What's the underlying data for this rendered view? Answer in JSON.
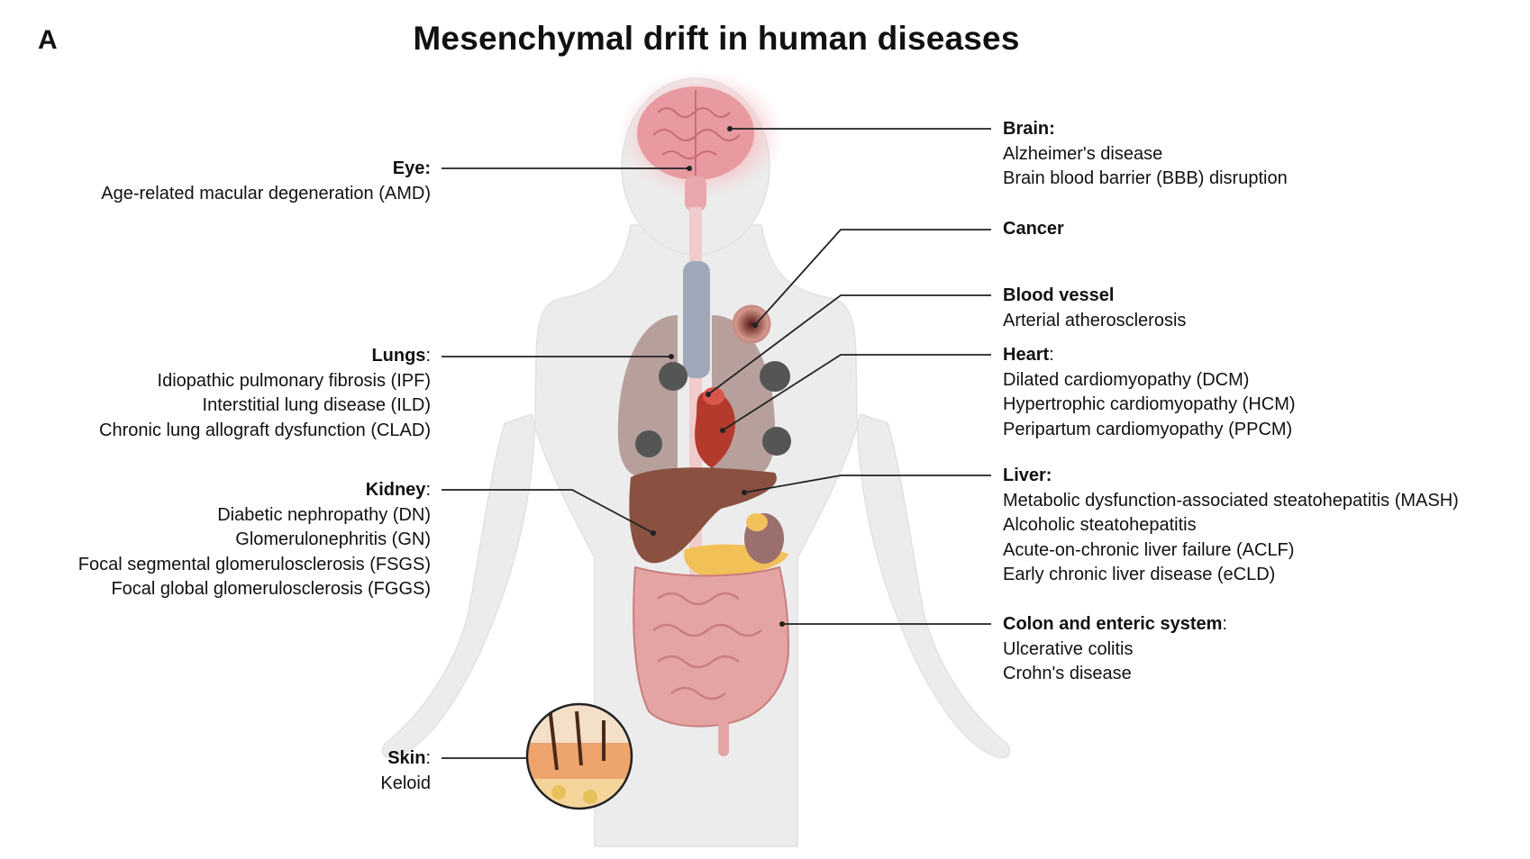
{
  "panel_label": "A",
  "title": "Mesenchymal drift in human diseases",
  "left_labels": {
    "eye": {
      "name": "Eye:",
      "items": [
        "Age-related macular degeneration (AMD)"
      ]
    },
    "lungs": {
      "name": "Lungs",
      "suffix": ":",
      "items": [
        "Idiopathic pulmonary fibrosis (IPF)",
        "Interstitial lung disease (ILD)",
        "Chronic lung allograft dysfunction (CLAD)"
      ]
    },
    "kidney": {
      "name": "Kidney",
      "suffix": ":",
      "items": [
        "Diabetic nephropathy (DN)",
        "Glomerulonephritis (GN)",
        "Focal segmental glomerulosclerosis (FSGS)",
        "Focal global glomerulosclerosis (FGGS)"
      ]
    },
    "skin": {
      "name": "Skin",
      "suffix": ":",
      "items": [
        "Keloid"
      ]
    }
  },
  "right_labels": {
    "brain": {
      "name": "Brain:",
      "items": [
        "Alzheimer's disease",
        "Brain blood barrier (BBB) disruption"
      ]
    },
    "cancer": {
      "name": "Cancer",
      "items": []
    },
    "blood_vessel": {
      "name": "Blood vessel",
      "items": [
        "Arterial atherosclerosis"
      ]
    },
    "heart": {
      "name": "Heart",
      "suffix": ":",
      "items": [
        "Dilated cardiomyopathy (DCM)",
        "Hypertrophic cardiomyopathy (HCM)",
        "Peripartum cardiomyopathy (PPCM)"
      ]
    },
    "liver": {
      "name": "Liver:",
      "items": [
        "Metabolic dysfunction-associated steatohepatitis (MASH)",
        "Alcoholic steatohepatitis",
        "Acute-on-chronic liver failure (ACLF)",
        "Early chronic liver disease (eCLD)"
      ]
    },
    "colon": {
      "name": "Colon and enteric system",
      "suffix": ":",
      "items": [
        "Ulcerative colitis",
        "Crohn's disease"
      ]
    }
  }
}
